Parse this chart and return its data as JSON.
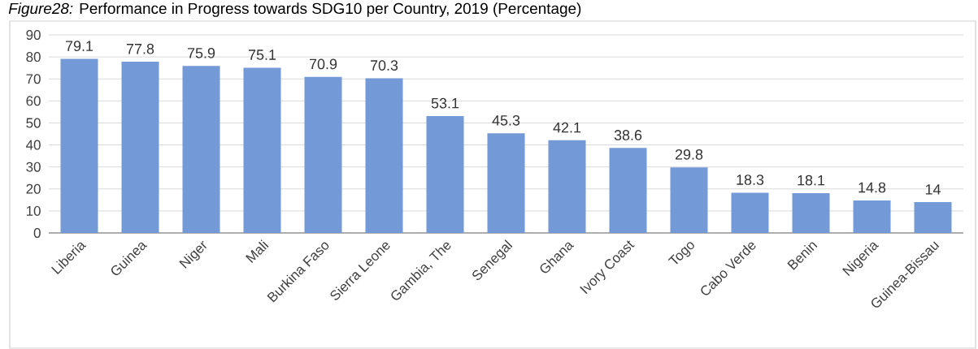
{
  "chart_data": {
    "type": "bar",
    "title": "*Figure28:* Performance in Progress towards SDG10 per Country, 2019 (Percentage)",
    "categories": [
      "Liberia",
      "Guinea",
      "Niger",
      "Mali",
      "Burkina Faso",
      "Sierra Leone",
      "Gambia, The",
      "Senegal",
      "Ghana",
      "Ivory Coast",
      "Togo",
      "Cabo Verde",
      "Benin",
      "Nigeria",
      "Guinea-Bissau"
    ],
    "values": [
      79.1,
      77.8,
      75.9,
      75.1,
      70.9,
      70.3,
      53.1,
      45.3,
      42.1,
      38.6,
      29.8,
      18.3,
      18.1,
      14.8,
      14
    ],
    "color": "#7399d6",
    "ylim": [
      0,
      90
    ],
    "yticks": [
      0,
      10,
      20,
      30,
      40,
      50,
      60,
      70,
      80,
      90
    ],
    "grid": "y",
    "data_labels": true
  }
}
